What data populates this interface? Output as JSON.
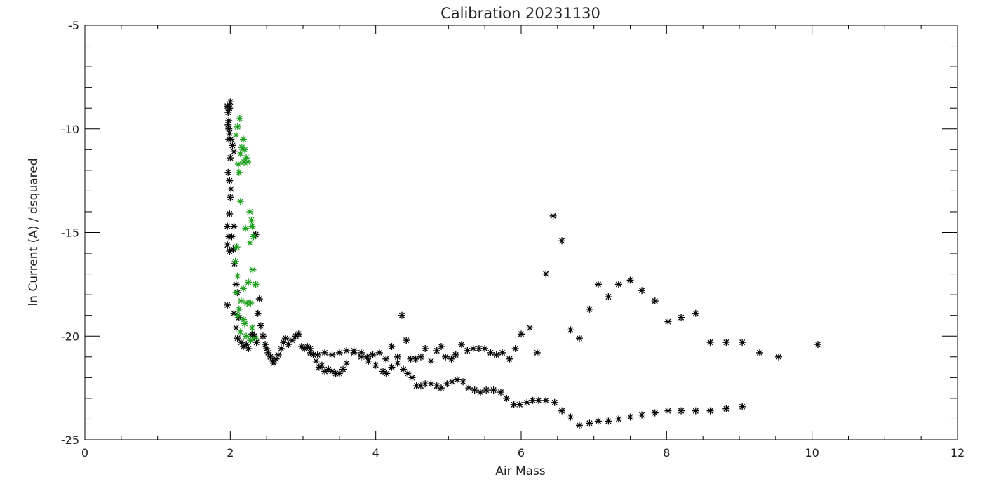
{
  "chart_data": {
    "type": "scatter",
    "title": "Calibration 20231130",
    "xlabel": "Air Mass",
    "ylabel": "ln Current (A) / dsquared",
    "xlim": [
      0,
      12
    ],
    "ylim": [
      -25,
      -5
    ],
    "x_ticks": [
      "0",
      "2",
      "4",
      "6",
      "8",
      "10",
      "12"
    ],
    "y_ticks": [
      "-25",
      "-20",
      "-15",
      "-10",
      "-5"
    ],
    "grid": false,
    "marker": "asterisk",
    "colors": {
      "series_1": "#000000",
      "series_2": "#1a9e1a"
    },
    "series": [
      {
        "color": "#000000",
        "points": [
          [
            1.96,
            -8.9
          ],
          [
            1.97,
            -9.2
          ],
          [
            1.98,
            -9.6
          ],
          [
            1.99,
            -9.0
          ],
          [
            2.0,
            -8.7
          ],
          [
            1.97,
            -9.8
          ],
          [
            1.98,
            -10.0
          ],
          [
            1.99,
            -10.2
          ],
          [
            2.01,
            -10.5
          ],
          [
            2.03,
            -10.8
          ],
          [
            2.05,
            -11.1
          ],
          [
            1.98,
            -10.5
          ],
          [
            2.0,
            -11.4
          ],
          [
            1.97,
            -12.1
          ],
          [
            1.99,
            -12.5
          ],
          [
            2.01,
            -12.9
          ],
          [
            2.0,
            -13.3
          ],
          [
            1.99,
            -14.1
          ],
          [
            1.96,
            -14.7
          ],
          [
            1.98,
            -15.2
          ],
          [
            2.02,
            -15.2
          ],
          [
            2.05,
            -14.7
          ],
          [
            1.96,
            -15.6
          ],
          [
            1.99,
            -15.9
          ],
          [
            2.04,
            -15.8
          ],
          [
            2.06,
            -16.5
          ],
          [
            2.08,
            -17.5
          ],
          [
            2.1,
            -17.9
          ],
          [
            1.96,
            -18.5
          ],
          [
            2.05,
            -18.9
          ],
          [
            2.12,
            -19.1
          ],
          [
            2.08,
            -19.6
          ],
          [
            2.1,
            -20.1
          ],
          [
            2.15,
            -20.3
          ],
          [
            2.18,
            -20.5
          ],
          [
            2.22,
            -20.4
          ],
          [
            2.25,
            -20.6
          ],
          [
            2.28,
            -20.2
          ],
          [
            2.3,
            -19.9
          ],
          [
            2.33,
            -20.0
          ],
          [
            2.36,
            -20.3
          ],
          [
            2.38,
            -18.9
          ],
          [
            2.4,
            -18.2
          ],
          [
            2.35,
            -15.1
          ],
          [
            2.42,
            -19.5
          ],
          [
            2.45,
            -20.0
          ],
          [
            2.48,
            -20.4
          ],
          [
            2.5,
            -20.6
          ],
          [
            2.52,
            -20.8
          ],
          [
            2.55,
            -21.0
          ],
          [
            2.58,
            -21.2
          ],
          [
            2.6,
            -21.3
          ],
          [
            2.63,
            -21.1
          ],
          [
            2.66,
            -20.9
          ],
          [
            2.7,
            -20.6
          ],
          [
            2.73,
            -20.3
          ],
          [
            2.76,
            -20.1
          ],
          [
            2.8,
            -20.4
          ],
          [
            2.85,
            -20.2
          ],
          [
            2.9,
            -20.0
          ],
          [
            2.94,
            -19.9
          ],
          [
            2.98,
            -20.5
          ],
          [
            3.02,
            -20.6
          ],
          [
            3.06,
            -20.5
          ],
          [
            3.1,
            -20.6
          ],
          [
            3.14,
            -20.9
          ],
          [
            3.18,
            -21.2
          ],
          [
            3.22,
            -21.5
          ],
          [
            3.26,
            -21.4
          ],
          [
            3.3,
            -21.7
          ],
          [
            3.35,
            -21.6
          ],
          [
            3.4,
            -21.7
          ],
          [
            3.45,
            -21.8
          ],
          [
            3.5,
            -21.8
          ],
          [
            3.55,
            -21.6
          ],
          [
            3.6,
            -21.3
          ],
          [
            3.1,
            -20.8
          ],
          [
            3.2,
            -20.9
          ],
          [
            3.3,
            -20.8
          ],
          [
            3.4,
            -20.9
          ],
          [
            3.5,
            -20.8
          ],
          [
            3.6,
            -20.7
          ],
          [
            3.7,
            -20.8
          ],
          [
            3.8,
            -21.0
          ],
          [
            3.9,
            -21.2
          ],
          [
            4.0,
            -21.4
          ],
          [
            4.1,
            -21.7
          ],
          [
            4.15,
            -21.8
          ],
          [
            4.22,
            -21.5
          ],
          [
            4.3,
            -21.3
          ],
          [
            4.38,
            -21.6
          ],
          [
            4.44,
            -21.8
          ],
          [
            4.5,
            -22.0
          ],
          [
            4.56,
            -22.4
          ],
          [
            4.62,
            -22.4
          ],
          [
            4.68,
            -22.3
          ],
          [
            4.76,
            -22.3
          ],
          [
            4.84,
            -22.4
          ],
          [
            4.9,
            -22.5
          ],
          [
            4.98,
            -22.3
          ],
          [
            5.05,
            -22.2
          ],
          [
            5.12,
            -22.1
          ],
          [
            5.2,
            -22.2
          ],
          [
            5.28,
            -22.5
          ],
          [
            5.36,
            -22.6
          ],
          [
            5.44,
            -22.7
          ],
          [
            5.52,
            -22.6
          ],
          [
            5.62,
            -22.6
          ],
          [
            5.72,
            -22.7
          ],
          [
            5.8,
            -23.0
          ],
          [
            5.9,
            -23.3
          ],
          [
            5.98,
            -23.3
          ],
          [
            6.08,
            -23.2
          ],
          [
            6.16,
            -23.1
          ],
          [
            6.24,
            -23.1
          ],
          [
            6.34,
            -23.1
          ],
          [
            6.46,
            -23.2
          ],
          [
            6.56,
            -23.6
          ],
          [
            6.68,
            -23.9
          ],
          [
            6.8,
            -24.3
          ],
          [
            6.94,
            -24.2
          ],
          [
            7.06,
            -24.1
          ],
          [
            7.2,
            -24.1
          ],
          [
            7.34,
            -24.0
          ],
          [
            7.5,
            -23.9
          ],
          [
            7.66,
            -23.8
          ],
          [
            7.84,
            -23.7
          ],
          [
            8.02,
            -23.6
          ],
          [
            8.2,
            -23.6
          ],
          [
            8.4,
            -23.6
          ],
          [
            8.6,
            -23.6
          ],
          [
            8.82,
            -23.5
          ],
          [
            9.04,
            -23.4
          ],
          [
            3.7,
            -20.7
          ],
          [
            3.8,
            -20.8
          ],
          [
            3.88,
            -21.0
          ],
          [
            3.96,
            -20.9
          ],
          [
            4.05,
            -20.8
          ],
          [
            4.14,
            -21.1
          ],
          [
            4.22,
            -20.5
          ],
          [
            4.3,
            -21.0
          ],
          [
            4.36,
            -19.0
          ],
          [
            4.42,
            -20.2
          ],
          [
            4.48,
            -21.1
          ],
          [
            4.55,
            -21.1
          ],
          [
            4.62,
            -21.0
          ],
          [
            4.68,
            -20.6
          ],
          [
            4.76,
            -21.2
          ],
          [
            4.84,
            -20.7
          ],
          [
            4.9,
            -20.5
          ],
          [
            4.96,
            -21.0
          ],
          [
            5.04,
            -21.1
          ],
          [
            5.1,
            -20.9
          ],
          [
            5.18,
            -20.4
          ],
          [
            5.26,
            -20.7
          ],
          [
            5.34,
            -20.6
          ],
          [
            5.42,
            -20.6
          ],
          [
            5.5,
            -20.6
          ],
          [
            5.58,
            -20.8
          ],
          [
            5.66,
            -20.9
          ],
          [
            5.74,
            -20.8
          ],
          [
            5.84,
            -21.1
          ],
          [
            5.92,
            -20.6
          ],
          [
            6.0,
            -19.9
          ],
          [
            6.12,
            -19.6
          ],
          [
            6.22,
            -20.8
          ],
          [
            6.34,
            -17.0
          ],
          [
            6.44,
            -14.2
          ],
          [
            6.56,
            -15.4
          ],
          [
            6.68,
            -19.7
          ],
          [
            6.8,
            -20.1
          ],
          [
            6.94,
            -18.7
          ],
          [
            7.06,
            -17.5
          ],
          [
            7.2,
            -18.1
          ],
          [
            7.34,
            -17.5
          ],
          [
            7.5,
            -17.3
          ],
          [
            7.66,
            -17.8
          ],
          [
            7.84,
            -18.3
          ],
          [
            8.02,
            -19.3
          ],
          [
            8.2,
            -19.1
          ],
          [
            8.4,
            -18.9
          ],
          [
            8.6,
            -20.3
          ],
          [
            8.82,
            -20.3
          ],
          [
            9.04,
            -20.3
          ],
          [
            9.28,
            -20.8
          ],
          [
            9.54,
            -21.0
          ],
          [
            10.08,
            -20.4
          ]
        ]
      },
      {
        "color": "#1a9e1a",
        "points": [
          [
            2.13,
            -9.5
          ],
          [
            2.1,
            -9.9
          ],
          [
            2.08,
            -10.3
          ],
          [
            2.18,
            -10.5
          ],
          [
            2.16,
            -10.9
          ],
          [
            2.14,
            -11.2
          ],
          [
            2.2,
            -11.0
          ],
          [
            2.22,
            -11.4
          ],
          [
            2.19,
            -11.6
          ],
          [
            2.24,
            -11.6
          ],
          [
            2.11,
            -11.7
          ],
          [
            2.12,
            -12.1
          ],
          [
            2.14,
            -13.5
          ],
          [
            2.27,
            -14.0
          ],
          [
            2.29,
            -14.4
          ],
          [
            2.3,
            -14.7
          ],
          [
            2.21,
            -14.8
          ],
          [
            2.32,
            -15.2
          ],
          [
            2.27,
            -15.5
          ],
          [
            2.09,
            -15.7
          ],
          [
            2.07,
            -16.4
          ],
          [
            2.31,
            -16.8
          ],
          [
            2.1,
            -17.1
          ],
          [
            2.35,
            -17.5
          ],
          [
            2.25,
            -17.4
          ],
          [
            2.18,
            -17.7
          ],
          [
            2.08,
            -17.9
          ],
          [
            2.15,
            -18.3
          ],
          [
            2.23,
            -18.4
          ],
          [
            2.28,
            -18.4
          ],
          [
            2.12,
            -18.7
          ],
          [
            2.1,
            -19.0
          ],
          [
            2.18,
            -19.2
          ],
          [
            2.2,
            -19.4
          ],
          [
            2.3,
            -19.6
          ],
          [
            2.14,
            -19.8
          ],
          [
            2.22,
            -20.0
          ],
          [
            2.28,
            -20.2
          ],
          [
            2.34,
            -20.1
          ]
        ]
      }
    ]
  }
}
